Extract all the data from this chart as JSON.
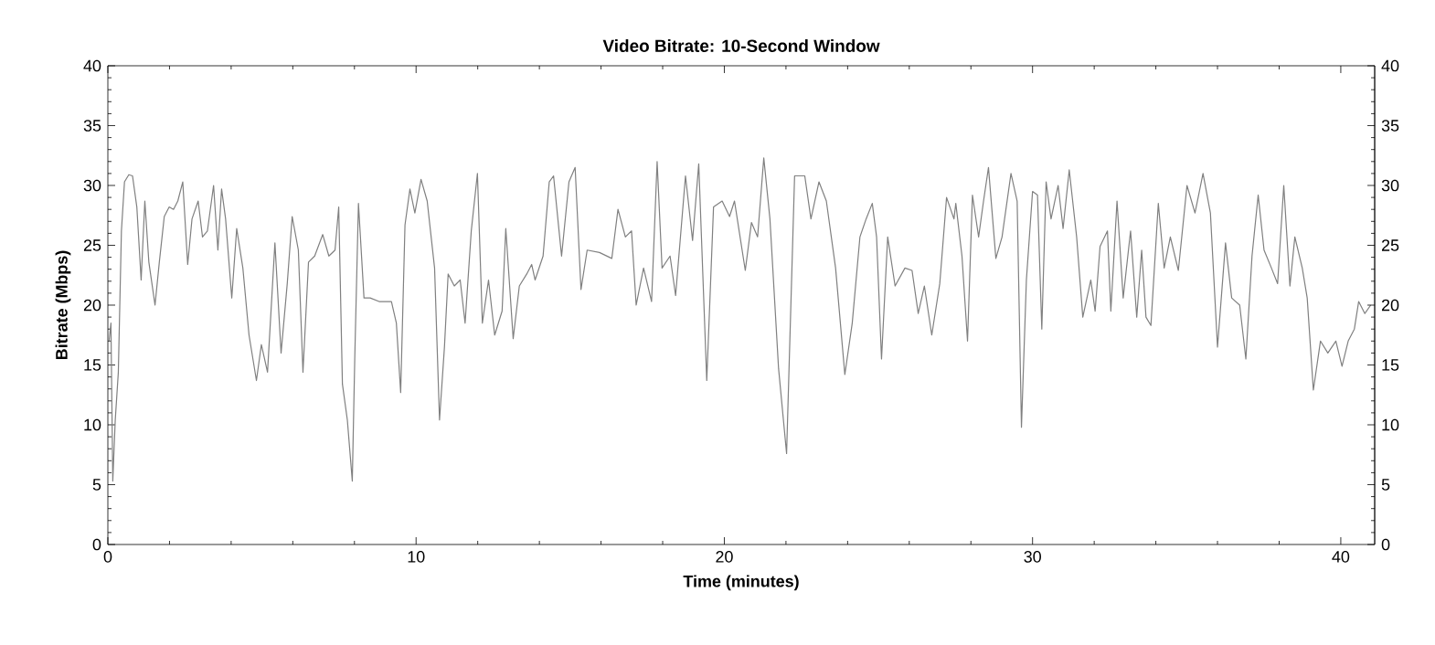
{
  "chart_data": {
    "type": "line",
    "title": "Video Bitrate: 10-Second Window",
    "xlabel": "Time (minutes)",
    "ylabel": "Bitrate (Mbps)",
    "xlim": [
      0,
      41.1
    ],
    "xticks": [
      0,
      10,
      20,
      30,
      40
    ],
    "ylim": [
      0,
      40
    ],
    "yticks": [
      0,
      5,
      10,
      15,
      20,
      25,
      30,
      35,
      40
    ],
    "y2lim": [
      0,
      40
    ],
    "y2ticks": [
      0,
      5,
      10,
      15,
      20,
      25,
      30,
      35,
      40
    ],
    "grid": false,
    "legend": false,
    "marker": "none",
    "line_style": "solid",
    "series": [
      {
        "color": "#808080",
        "x": [
          0.04,
          0.1,
          0.16,
          0.24,
          0.34,
          0.44,
          0.54,
          0.68,
          0.8,
          0.94,
          1.08,
          1.2,
          1.33,
          1.53,
          1.67,
          1.83,
          1.99,
          2.13,
          2.27,
          2.43,
          2.59,
          2.73,
          2.93,
          3.07,
          3.23,
          3.43,
          3.57,
          3.69,
          3.82,
          4.02,
          4.18,
          4.38,
          4.58,
          4.82,
          4.98,
          5.18,
          5.42,
          5.62,
          5.82,
          5.98,
          6.18,
          6.33,
          6.51,
          6.71,
          6.97,
          7.17,
          7.37,
          7.49,
          7.61,
          7.77,
          7.93,
          8.01,
          8.13,
          8.31,
          8.51,
          8.8,
          9.2,
          9.36,
          9.5,
          9.64,
          9.8,
          9.96,
          10.16,
          10.36,
          10.6,
          10.76,
          10.92,
          11.04,
          11.24,
          11.43,
          11.59,
          11.79,
          11.99,
          12.15,
          12.35,
          12.55,
          12.79,
          12.91,
          13.15,
          13.35,
          13.59,
          13.75,
          13.86,
          14.12,
          14.32,
          14.46,
          14.72,
          14.96,
          15.16,
          15.35,
          15.55,
          15.95,
          16.35,
          16.55,
          16.79,
          16.99,
          17.14,
          17.38,
          17.64,
          17.82,
          17.98,
          18.24,
          18.42,
          18.74,
          18.97,
          19.17,
          19.43,
          19.65,
          19.93,
          20.17,
          20.33,
          20.68,
          20.88,
          21.08,
          21.28,
          21.48,
          21.76,
          22.02,
          22.28,
          22.61,
          22.81,
          23.07,
          23.31,
          23.61,
          23.91,
          24.15,
          24.4,
          24.6,
          24.8,
          24.94,
          25.1,
          25.3,
          25.54,
          25.86,
          26.09,
          26.29,
          26.49,
          26.73,
          26.99,
          27.21,
          27.45,
          27.51,
          27.71,
          27.89,
          28.05,
          28.25,
          28.41,
          28.57,
          28.81,
          29.01,
          29.3,
          29.5,
          29.64,
          29.8,
          30.0,
          30.16,
          30.3,
          30.44,
          30.6,
          30.83,
          30.99,
          31.19,
          31.43,
          31.63,
          31.89,
          32.03,
          32.19,
          32.43,
          32.54,
          32.74,
          32.94,
          33.18,
          33.38,
          33.54,
          33.68,
          33.84,
          34.08,
          34.27,
          34.47,
          34.73,
          35.01,
          35.27,
          35.53,
          35.77,
          36.0,
          36.26,
          36.46,
          36.72,
          36.92,
          37.12,
          37.32,
          37.51,
          37.75,
          37.95,
          38.15,
          38.35,
          38.51,
          38.75,
          38.91,
          39.11,
          39.34,
          39.58,
          39.84,
          40.04,
          40.24,
          40.44,
          40.58,
          40.78,
          40.97
        ],
        "values": [
          17,
          18.5,
          5.3,
          10.4,
          14.4,
          26.2,
          30.3,
          30.9,
          30.8,
          28.2,
          22.1,
          28.7,
          23.6,
          20,
          23.6,
          27.4,
          28.2,
          28,
          28.7,
          30.3,
          23.4,
          27.2,
          28.7,
          25.7,
          26.2,
          30,
          24.6,
          29.7,
          27.2,
          20.6,
          26.4,
          23.1,
          17.5,
          13.7,
          16.7,
          14.4,
          25.2,
          16,
          21.8,
          27.4,
          24.6,
          14.4,
          23.6,
          24.1,
          25.9,
          24.1,
          24.6,
          28.2,
          13.4,
          10.4,
          5.3,
          15.5,
          28.5,
          20.6,
          20.6,
          20.3,
          20.3,
          18.5,
          12.7,
          26.7,
          29.7,
          27.7,
          30.5,
          28.7,
          23.1,
          10.4,
          16.5,
          22.6,
          21.6,
          22.1,
          18.5,
          26.2,
          31,
          18.5,
          22.1,
          17.5,
          19.5,
          26.4,
          17.2,
          21.6,
          22.6,
          23.4,
          22.1,
          24.1,
          30.3,
          30.8,
          24.1,
          30.3,
          31.5,
          21.3,
          24.6,
          24.4,
          23.9,
          28,
          25.7,
          26.2,
          20,
          23.1,
          20.3,
          32,
          23.1,
          24.1,
          20.8,
          30.8,
          25.4,
          31.8,
          13.7,
          28.2,
          28.7,
          27.4,
          28.7,
          22.9,
          26.9,
          25.7,
          32.3,
          27.2,
          14.7,
          7.6,
          30.8,
          30.8,
          27.2,
          30.3,
          28.7,
          23.1,
          14.2,
          18.5,
          25.7,
          27.2,
          28.5,
          25.7,
          15.5,
          25.7,
          21.6,
          23.1,
          22.9,
          19.3,
          21.6,
          17.5,
          21.8,
          29,
          27.2,
          28.5,
          24.1,
          17,
          29.2,
          25.7,
          28.7,
          31.5,
          23.9,
          25.7,
          31,
          28.7,
          9.8,
          22.1,
          29.5,
          29.2,
          18,
          30.3,
          27.2,
          30,
          26.4,
          31.3,
          25.7,
          19,
          22.1,
          19.5,
          24.9,
          26.2,
          19.5,
          28.7,
          20.6,
          26.2,
          19,
          24.6,
          19,
          18.3,
          28.5,
          23.1,
          25.7,
          22.9,
          30,
          27.7,
          31,
          27.7,
          16.5,
          25.2,
          20.6,
          20,
          15.5,
          24.1,
          29.2,
          24.6,
          23.1,
          21.8,
          30,
          21.6,
          25.7,
          23.1,
          20.6,
          12.9,
          17,
          16,
          17,
          14.9,
          17,
          18,
          20.3,
          19.3,
          20
        ]
      }
    ]
  }
}
